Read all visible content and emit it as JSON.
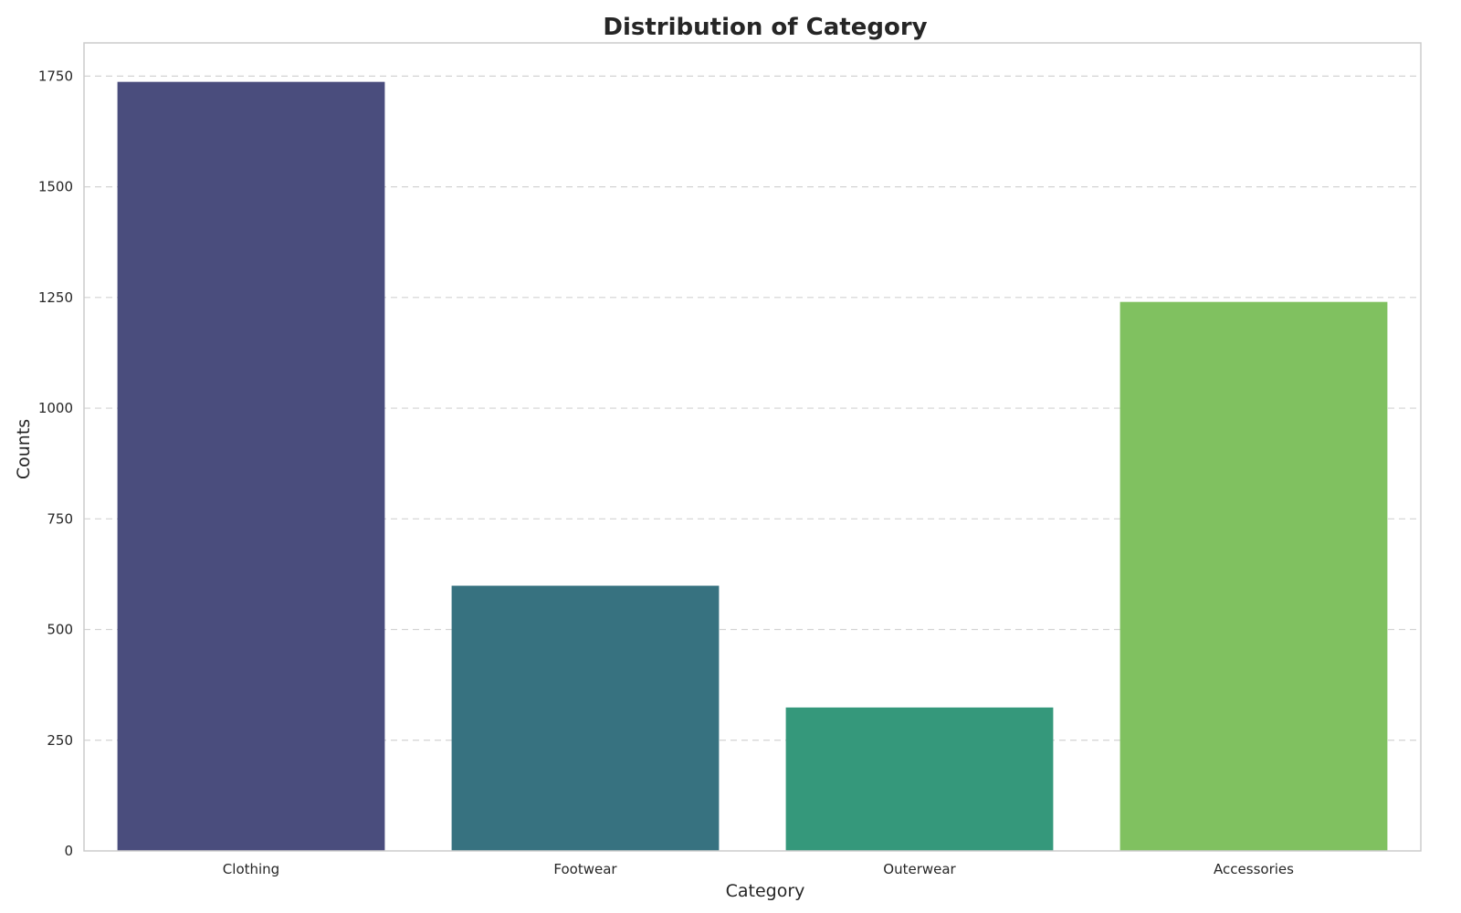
{
  "chart_data": {
    "type": "bar",
    "title": "Distribution of Category",
    "xlabel": "Category",
    "ylabel": "Counts",
    "categories": [
      "Clothing",
      "Footwear",
      "Outerwear",
      "Accessories"
    ],
    "values": [
      1737,
      599,
      324,
      1240
    ],
    "colors": [
      "#4a4d7d",
      "#377280",
      "#35987b",
      "#80c160"
    ],
    "ylim": [
      0,
      1825
    ],
    "yticks": [
      0,
      250,
      500,
      750,
      1000,
      1250,
      1500,
      1750
    ],
    "grid": "y, dashed",
    "legend": "none"
  }
}
